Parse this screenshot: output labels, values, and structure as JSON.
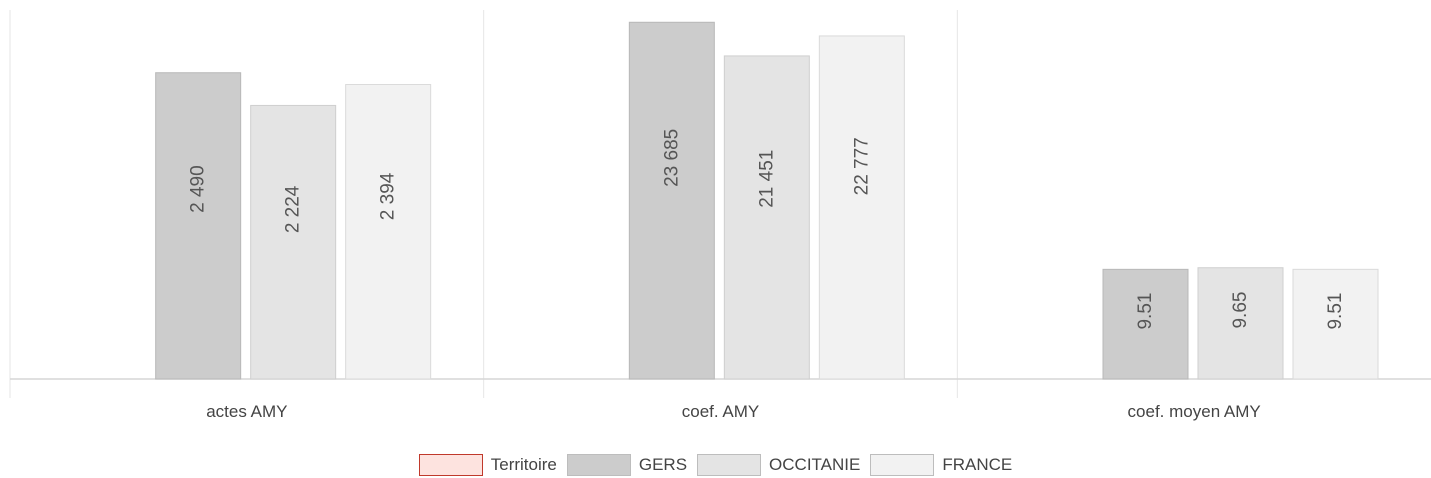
{
  "chart_data": {
    "type": "bar",
    "categories": [
      "actes AMY",
      "coef. AMY",
      "coef. moyen AMY"
    ],
    "series": [
      {
        "name": "Territoire",
        "color": "#fde3df",
        "border": "#c0392b",
        "values": [
          null,
          null,
          null
        ]
      },
      {
        "name": "GERS",
        "color": "#cccccc",
        "border": "#b8b8b8",
        "values": [
          2490,
          23685,
          9.51
        ]
      },
      {
        "name": "OCCITANIE",
        "color": "#e4e4e4",
        "border": "#cfcfcf",
        "values": [
          2224,
          21451,
          9.65
        ]
      },
      {
        "name": "FRANCE",
        "color": "#f2f2f2",
        "border": "#dadada",
        "values": [
          2394,
          22777,
          9.51
        ]
      }
    ],
    "value_labels": [
      [
        "2 490",
        "23 685",
        "9.51"
      ],
      [
        "2 224",
        "21 451",
        "9.65"
      ],
      [
        "2 394",
        "22 777",
        "9.51"
      ]
    ],
    "ylim_per_category": [
      [
        0,
        3000
      ],
      [
        0,
        24500
      ],
      [
        0,
        32
      ]
    ],
    "grid": false,
    "legend_position": "bottom"
  }
}
